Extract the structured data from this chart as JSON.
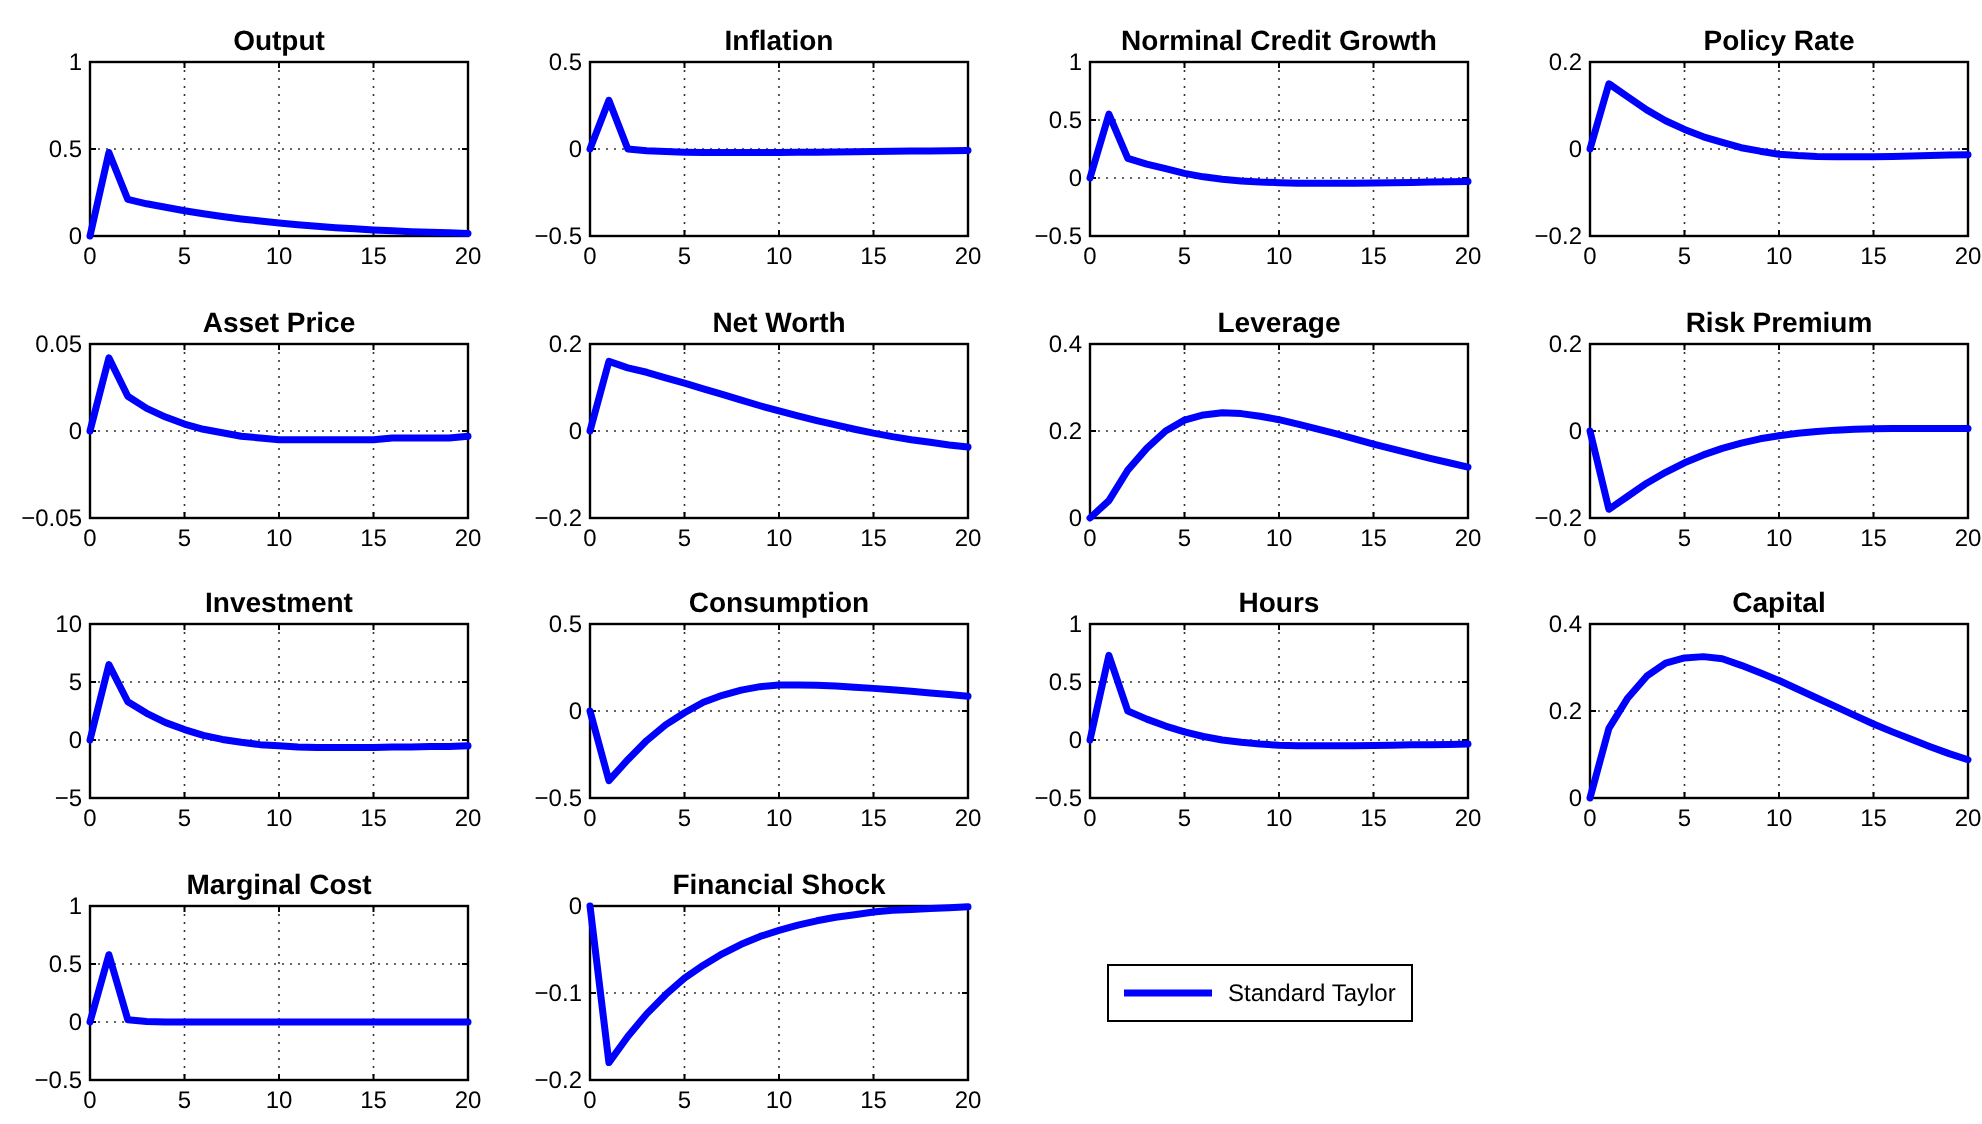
{
  "chart_data": [
    {
      "type": "line",
      "title": "Output",
      "x": [
        0,
        1,
        2,
        3,
        4,
        5,
        6,
        7,
        8,
        9,
        10,
        11,
        12,
        13,
        14,
        15,
        16,
        17,
        18,
        19,
        20
      ],
      "series": [
        {
          "color": "#0000ff",
          "values": [
            0,
            0.48,
            0.21,
            0.185,
            0.165,
            0.145,
            0.128,
            0.112,
            0.098,
            0.086,
            0.075,
            0.065,
            0.056,
            0.048,
            0.041,
            0.035,
            0.03,
            0.025,
            0.021,
            0.018,
            0.015
          ]
        }
      ],
      "xlim": [
        0,
        20
      ],
      "xticks": [
        0,
        5,
        10,
        15,
        20
      ],
      "ylim": [
        0,
        1
      ],
      "yticks": [
        0,
        0.5,
        1
      ],
      "grid": true,
      "legend": false
    },
    {
      "type": "line",
      "title": "Inflation",
      "x": [
        0,
        1,
        2,
        3,
        4,
        5,
        6,
        7,
        8,
        9,
        10,
        11,
        12,
        13,
        14,
        15,
        16,
        17,
        18,
        19,
        20
      ],
      "series": [
        {
          "color": "#0000ff",
          "values": [
            0,
            0.28,
            0,
            -0.01,
            -0.015,
            -0.018,
            -0.02,
            -0.02,
            -0.02,
            -0.02,
            -0.02,
            -0.019,
            -0.018,
            -0.017,
            -0.016,
            -0.015,
            -0.013,
            -0.012,
            -0.011,
            -0.01,
            -0.009
          ]
        }
      ],
      "xlim": [
        0,
        20
      ],
      "xticks": [
        0,
        5,
        10,
        15,
        20
      ],
      "ylim": [
        -0.5,
        0.5
      ],
      "yticks": [
        -0.5,
        0,
        0.5
      ],
      "grid": true,
      "legend": false
    },
    {
      "type": "line",
      "title": "Norminal Credit Growth",
      "x": [
        0,
        1,
        2,
        3,
        4,
        5,
        6,
        7,
        8,
        9,
        10,
        11,
        12,
        13,
        14,
        15,
        16,
        17,
        18,
        19,
        20
      ],
      "series": [
        {
          "color": "#0000ff",
          "values": [
            0,
            0.55,
            0.17,
            0.12,
            0.08,
            0.04,
            0.01,
            -0.01,
            -0.025,
            -0.035,
            -0.04,
            -0.045,
            -0.045,
            -0.045,
            -0.045,
            -0.043,
            -0.04,
            -0.038,
            -0.035,
            -0.032,
            -0.03
          ]
        }
      ],
      "xlim": [
        0,
        20
      ],
      "xticks": [
        0,
        5,
        10,
        15,
        20
      ],
      "ylim": [
        -0.5,
        1
      ],
      "yticks": [
        -0.5,
        0,
        0.5,
        1
      ],
      "grid": true,
      "legend": false
    },
    {
      "type": "line",
      "title": "Policy Rate",
      "x": [
        0,
        1,
        2,
        3,
        4,
        5,
        6,
        7,
        8,
        9,
        10,
        11,
        12,
        13,
        14,
        15,
        16,
        17,
        18,
        19,
        20
      ],
      "series": [
        {
          "color": "#0000ff",
          "values": [
            0,
            0.15,
            0.12,
            0.09,
            0.065,
            0.045,
            0.028,
            0.015,
            0.003,
            -0.005,
            -0.012,
            -0.015,
            -0.017,
            -0.018,
            -0.018,
            -0.018,
            -0.017,
            -0.016,
            -0.015,
            -0.014,
            -0.013
          ]
        }
      ],
      "xlim": [
        0,
        20
      ],
      "xticks": [
        0,
        5,
        10,
        15,
        20
      ],
      "ylim": [
        -0.2,
        0.2
      ],
      "yticks": [
        -0.2,
        0,
        0.2
      ],
      "grid": true,
      "legend": false
    },
    {
      "type": "line",
      "title": "Asset Price",
      "x": [
        0,
        1,
        2,
        3,
        4,
        5,
        6,
        7,
        8,
        9,
        10,
        11,
        12,
        13,
        14,
        15,
        16,
        17,
        18,
        19,
        20
      ],
      "series": [
        {
          "color": "#0000ff",
          "values": [
            0,
            0.042,
            0.02,
            0.013,
            0.008,
            0.004,
            0.001,
            -0.001,
            -0.003,
            -0.004,
            -0.005,
            -0.005,
            -0.005,
            -0.005,
            -0.005,
            -0.005,
            -0.004,
            -0.004,
            -0.004,
            -0.004,
            -0.003
          ]
        }
      ],
      "xlim": [
        0,
        20
      ],
      "xticks": [
        0,
        5,
        10,
        15,
        20
      ],
      "ylim": [
        -0.05,
        0.05
      ],
      "yticks": [
        -0.05,
        0,
        0.05
      ],
      "grid": true,
      "legend": false
    },
    {
      "type": "line",
      "title": "Net Worth",
      "x": [
        0,
        1,
        2,
        3,
        4,
        5,
        6,
        7,
        8,
        9,
        10,
        11,
        12,
        13,
        14,
        15,
        16,
        17,
        18,
        19,
        20
      ],
      "series": [
        {
          "color": "#0000ff",
          "values": [
            0,
            0.16,
            0.145,
            0.135,
            0.122,
            0.11,
            0.097,
            0.084,
            0.071,
            0.058,
            0.046,
            0.035,
            0.024,
            0.014,
            0.004,
            -0.005,
            -0.013,
            -0.02,
            -0.026,
            -0.032,
            -0.037
          ]
        }
      ],
      "xlim": [
        0,
        20
      ],
      "xticks": [
        0,
        5,
        10,
        15,
        20
      ],
      "ylim": [
        -0.2,
        0.2
      ],
      "yticks": [
        -0.2,
        0,
        0.2
      ],
      "grid": true,
      "legend": false
    },
    {
      "type": "line",
      "title": "Leverage",
      "x": [
        0,
        1,
        2,
        3,
        4,
        5,
        6,
        7,
        8,
        9,
        10,
        11,
        12,
        13,
        14,
        15,
        16,
        17,
        18,
        19,
        20
      ],
      "series": [
        {
          "color": "#0000ff",
          "values": [
            0,
            0.04,
            0.11,
            0.16,
            0.2,
            0.225,
            0.237,
            0.242,
            0.24,
            0.234,
            0.226,
            0.216,
            0.205,
            0.194,
            0.182,
            0.17,
            0.159,
            0.148,
            0.137,
            0.127,
            0.117
          ]
        }
      ],
      "xlim": [
        0,
        20
      ],
      "xticks": [
        0,
        5,
        10,
        15,
        20
      ],
      "ylim": [
        0,
        0.4
      ],
      "yticks": [
        0,
        0.2,
        0.4
      ],
      "grid": true,
      "legend": false
    },
    {
      "type": "line",
      "title": "Risk Premium",
      "x": [
        0,
        1,
        2,
        3,
        4,
        5,
        6,
        7,
        8,
        9,
        10,
        11,
        12,
        13,
        14,
        15,
        16,
        17,
        18,
        19,
        20
      ],
      "series": [
        {
          "color": "#0000ff",
          "values": [
            0,
            -0.18,
            -0.15,
            -0.12,
            -0.095,
            -0.073,
            -0.055,
            -0.04,
            -0.028,
            -0.018,
            -0.011,
            -0.005,
            -0.001,
            0.002,
            0.004,
            0.005,
            0.006,
            0.006,
            0.006,
            0.006,
            0.006
          ]
        }
      ],
      "xlim": [
        0,
        20
      ],
      "xticks": [
        0,
        5,
        10,
        15,
        20
      ],
      "ylim": [
        -0.2,
        0.2
      ],
      "yticks": [
        -0.2,
        0,
        0.2
      ],
      "grid": true,
      "legend": false
    },
    {
      "type": "line",
      "title": "Investment",
      "x": [
        0,
        1,
        2,
        3,
        4,
        5,
        6,
        7,
        8,
        9,
        10,
        11,
        12,
        13,
        14,
        15,
        16,
        17,
        18,
        19,
        20
      ],
      "series": [
        {
          "color": "#0000ff",
          "values": [
            0,
            6.5,
            3.3,
            2.3,
            1.5,
            0.9,
            0.4,
            0.05,
            -0.2,
            -0.4,
            -0.5,
            -0.6,
            -0.65,
            -0.65,
            -0.65,
            -0.65,
            -0.6,
            -0.6,
            -0.55,
            -0.55,
            -0.5
          ]
        }
      ],
      "xlim": [
        0,
        20
      ],
      "xticks": [
        0,
        5,
        10,
        15,
        20
      ],
      "ylim": [
        -5,
        10
      ],
      "yticks": [
        -5,
        0,
        5,
        10
      ],
      "grid": true,
      "legend": false
    },
    {
      "type": "line",
      "title": "Consumption",
      "x": [
        0,
        1,
        2,
        3,
        4,
        5,
        6,
        7,
        8,
        9,
        10,
        11,
        12,
        13,
        14,
        15,
        16,
        17,
        18,
        19,
        20
      ],
      "series": [
        {
          "color": "#0000ff",
          "values": [
            0,
            -0.4,
            -0.28,
            -0.17,
            -0.08,
            -0.01,
            0.05,
            0.09,
            0.12,
            0.14,
            0.15,
            0.15,
            0.148,
            0.143,
            0.137,
            0.13,
            0.122,
            0.113,
            0.104,
            0.095,
            0.085
          ]
        }
      ],
      "xlim": [
        0,
        20
      ],
      "xticks": [
        0,
        5,
        10,
        15,
        20
      ],
      "ylim": [
        -0.5,
        0.5
      ],
      "yticks": [
        -0.5,
        0,
        0.5
      ],
      "grid": true,
      "legend": false
    },
    {
      "type": "line",
      "title": "Hours",
      "x": [
        0,
        1,
        2,
        3,
        4,
        5,
        6,
        7,
        8,
        9,
        10,
        11,
        12,
        13,
        14,
        15,
        16,
        17,
        18,
        19,
        20
      ],
      "series": [
        {
          "color": "#0000ff",
          "values": [
            0,
            0.73,
            0.25,
            0.18,
            0.12,
            0.07,
            0.03,
            0,
            -0.02,
            -0.035,
            -0.045,
            -0.05,
            -0.05,
            -0.05,
            -0.05,
            -0.048,
            -0.045,
            -0.042,
            -0.04,
            -0.038,
            -0.035
          ]
        }
      ],
      "xlim": [
        0,
        20
      ],
      "xticks": [
        0,
        5,
        10,
        15,
        20
      ],
      "ylim": [
        -0.5,
        1
      ],
      "yticks": [
        -0.5,
        0,
        0.5,
        1
      ],
      "grid": true,
      "legend": false
    },
    {
      "type": "line",
      "title": "Capital",
      "x": [
        0,
        1,
        2,
        3,
        4,
        5,
        6,
        7,
        8,
        9,
        10,
        11,
        12,
        13,
        14,
        15,
        16,
        17,
        18,
        19,
        20
      ],
      "series": [
        {
          "color": "#0000ff",
          "values": [
            0,
            0.16,
            0.23,
            0.28,
            0.31,
            0.322,
            0.325,
            0.32,
            0.305,
            0.288,
            0.27,
            0.25,
            0.23,
            0.21,
            0.19,
            0.17,
            0.152,
            0.135,
            0.118,
            0.102,
            0.088
          ]
        }
      ],
      "xlim": [
        0,
        20
      ],
      "xticks": [
        0,
        5,
        10,
        15,
        20
      ],
      "ylim": [
        0,
        0.4
      ],
      "yticks": [
        0,
        0.2,
        0.4
      ],
      "grid": true,
      "legend": false
    },
    {
      "type": "line",
      "title": "Marginal Cost",
      "x": [
        0,
        1,
        2,
        3,
        4,
        5,
        6,
        7,
        8,
        9,
        10,
        11,
        12,
        13,
        14,
        15,
        16,
        17,
        18,
        19,
        20
      ],
      "series": [
        {
          "color": "#0000ff",
          "values": [
            0,
            0.58,
            0.02,
            0.005,
            0,
            0,
            0,
            0,
            0,
            0,
            0,
            0,
            0,
            0,
            0,
            0,
            0,
            0,
            0,
            0,
            0
          ]
        }
      ],
      "xlim": [
        0,
        20
      ],
      "xticks": [
        0,
        5,
        10,
        15,
        20
      ],
      "ylim": [
        -0.5,
        1
      ],
      "yticks": [
        -0.5,
        0,
        0.5,
        1
      ],
      "grid": true,
      "legend": false
    },
    {
      "type": "line",
      "title": "Financial Shock",
      "x": [
        0,
        1,
        2,
        3,
        4,
        5,
        6,
        7,
        8,
        9,
        10,
        11,
        12,
        13,
        14,
        15,
        16,
        17,
        18,
        19,
        20
      ],
      "series": [
        {
          "name": "Standard Taylor",
          "color": "#0000ff",
          "values": [
            0,
            -0.18,
            -0.15,
            -0.124,
            -0.102,
            -0.083,
            -0.068,
            -0.055,
            -0.044,
            -0.035,
            -0.028,
            -0.022,
            -0.017,
            -0.013,
            -0.01,
            -0.007,
            -0.005,
            -0.004,
            -0.003,
            -0.002,
            -0.001
          ]
        }
      ],
      "xlim": [
        0,
        20
      ],
      "xticks": [
        0,
        5,
        10,
        15,
        20
      ],
      "ylim": [
        -0.2,
        0
      ],
      "yticks": [
        -0.2,
        -0.1,
        0
      ],
      "grid": true,
      "legend": "right"
    }
  ]
}
